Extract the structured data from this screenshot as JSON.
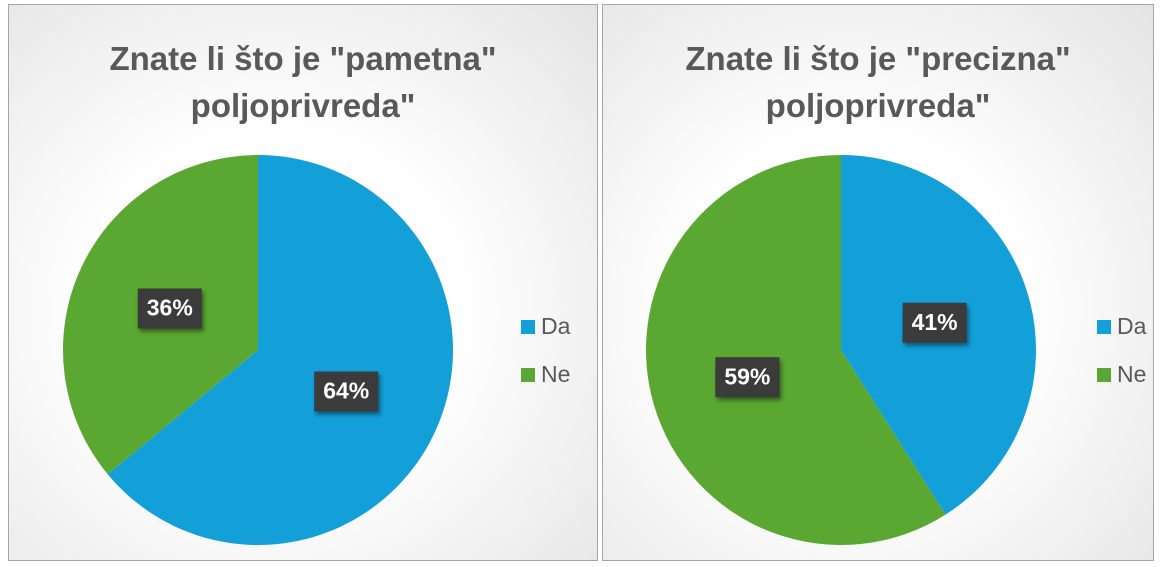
{
  "chart_data": [
    {
      "type": "pie",
      "title": "Znate li što je \"pametna\" poljoprivreda\"",
      "categories": [
        "Da",
        "Ne"
      ],
      "values": [
        64,
        36
      ],
      "value_labels": [
        "64%",
        "36%"
      ],
      "colors": [
        "#139fd8",
        "#5aa832"
      ],
      "legend": "right"
    },
    {
      "type": "pie",
      "title": "Znate li što je \"precizna\" poljoprivreda\"",
      "categories": [
        "Da",
        "Ne"
      ],
      "values": [
        41,
        59
      ],
      "value_labels": [
        "41%",
        "59%"
      ],
      "colors": [
        "#139fd8",
        "#5aa832"
      ],
      "legend": "right"
    }
  ]
}
